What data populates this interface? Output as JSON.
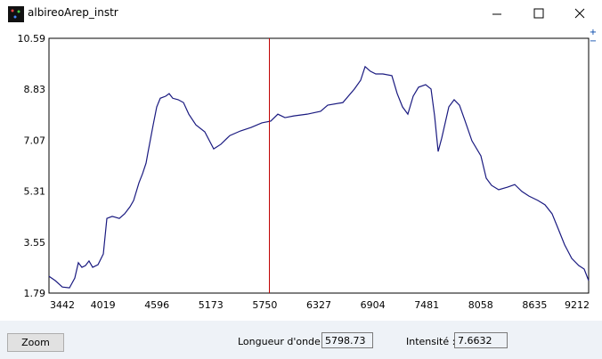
{
  "window": {
    "title": "albireoArep_instr"
  },
  "plot_controls": [
    "+",
    "−"
  ],
  "chart_data": {
    "type": "line",
    "color": "#1a1a80",
    "xlim": [
      3442,
      9212
    ],
    "xticks": [
      3442,
      4019,
      4596,
      5173,
      5750,
      6327,
      6904,
      7481,
      8058,
      8635,
      9212
    ],
    "ylim": [
      1.79,
      10.59
    ],
    "yticks": [
      1.79,
      3.55,
      5.31,
      7.07,
      8.83,
      10.59
    ],
    "x": [
      3442,
      3509,
      3585,
      3661,
      3718,
      3756,
      3794,
      3832,
      3870,
      3909,
      3966,
      4023,
      4061,
      4118,
      4194,
      4251,
      4308,
      4347,
      4404,
      4442,
      4480,
      4499,
      4556,
      4594,
      4632,
      4689,
      4727,
      4765,
      4823,
      4880,
      4937,
      5013,
      5108,
      5203,
      5280,
      5375,
      5489,
      5603,
      5718,
      5813,
      5889,
      5965,
      6060,
      6203,
      6346,
      6422,
      6584,
      6708,
      6774,
      6822,
      6879,
      6936,
      7012,
      7108,
      7165,
      7222,
      7279,
      7336,
      7393,
      7469,
      7527,
      7565,
      7603,
      7641,
      7717,
      7774,
      7831,
      7888,
      7964,
      8060,
      8117,
      8174,
      8250,
      8345,
      8422,
      8498,
      8574,
      8669,
      8745,
      8821,
      8879,
      8955,
      9031,
      9107,
      9164,
      9212
    ],
    "values": [
      2.37,
      2.22,
      2.0,
      1.97,
      2.31,
      2.84,
      2.68,
      2.74,
      2.9,
      2.68,
      2.77,
      3.14,
      4.37,
      4.44,
      4.37,
      4.53,
      4.77,
      4.99,
      5.6,
      5.91,
      6.28,
      6.62,
      7.6,
      8.22,
      8.52,
      8.59,
      8.68,
      8.52,
      8.47,
      8.37,
      7.97,
      7.6,
      7.36,
      6.77,
      6.93,
      7.23,
      7.39,
      7.51,
      7.67,
      7.73,
      7.97,
      7.85,
      7.91,
      7.97,
      8.07,
      8.28,
      8.37,
      8.84,
      9.14,
      9.61,
      9.45,
      9.36,
      9.36,
      9.3,
      8.68,
      8.22,
      7.97,
      8.59,
      8.9,
      8.99,
      8.84,
      7.91,
      6.68,
      7.14,
      8.22,
      8.47,
      8.28,
      7.76,
      7.05,
      6.53,
      5.76,
      5.51,
      5.36,
      5.45,
      5.54,
      5.3,
      5.14,
      4.99,
      4.84,
      4.53,
      4.07,
      3.46,
      2.99,
      2.74,
      2.62,
      2.22
    ],
    "cursor_color": "#c00000"
  },
  "controls": {
    "zoom_button": "Zoom",
    "wavelength_label": "Longueur d'onde :",
    "wavelength": 5798.73,
    "intensity_label": "Intensité :",
    "intensity": 7.6632
  }
}
